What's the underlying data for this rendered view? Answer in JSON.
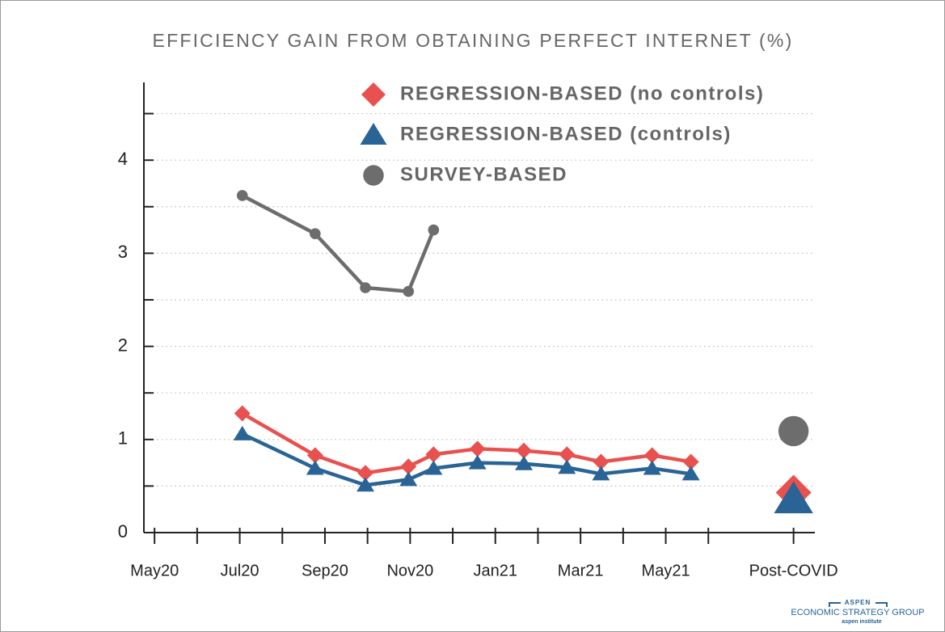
{
  "chart_data": {
    "type": "line",
    "title": "EFFICIENCY GAIN FROM OBTAINING PERFECT INTERNET (%)",
    "xlim": [
      -0.25,
      15.5
    ],
    "xticks": [
      {
        "value": 0,
        "label": "May20"
      },
      {
        "value": 2,
        "label": "Jul20"
      },
      {
        "value": 4,
        "label": "Sep20"
      },
      {
        "value": 6,
        "label": "Nov20"
      },
      {
        "value": 8,
        "label": "Jan21"
      },
      {
        "value": 10,
        "label": "Mar21"
      },
      {
        "value": 12,
        "label": "May21"
      },
      {
        "value": 15,
        "label": "Post-COVID"
      }
    ],
    "minor_xticks": [
      1,
      3,
      5,
      7,
      9,
      11,
      13
    ],
    "ylim": [
      0,
      4.8
    ],
    "yticks": [
      0,
      1,
      2,
      3,
      4
    ],
    "minor_yticks": [
      0.5,
      1.5,
      2.5,
      3.5,
      4.5
    ],
    "grid": true,
    "series": [
      {
        "name": "REGRESSION-BASED (no controls)",
        "color": "#e8514f",
        "marker": "diamond",
        "x": [
          2.06,
          3.77,
          4.95,
          5.96,
          6.55,
          7.58,
          8.67,
          9.68,
          10.48,
          11.68,
          12.59
        ],
        "values": [
          1.28,
          0.83,
          0.64,
          0.71,
          0.84,
          0.9,
          0.88,
          0.84,
          0.76,
          0.83,
          0.76
        ],
        "post_covid": 0.43
      },
      {
        "name": "REGRESSION-BASED (controls)",
        "color": "#2a6496",
        "marker": "triangle",
        "x": [
          2.06,
          3.77,
          4.95,
          5.96,
          6.55,
          7.58,
          8.67,
          9.68,
          10.48,
          11.68,
          12.59
        ],
        "values": [
          1.06,
          0.69,
          0.51,
          0.57,
          0.69,
          0.75,
          0.74,
          0.7,
          0.63,
          0.69,
          0.63
        ],
        "post_covid": 0.36
      },
      {
        "name": "SURVEY-BASED",
        "color": "#6d6d6d",
        "marker": "circle",
        "x": [
          2.06,
          3.77,
          4.95,
          5.96,
          6.55
        ],
        "values": [
          3.62,
          3.21,
          2.63,
          2.59,
          3.25
        ],
        "post_covid": 1.09
      }
    ]
  },
  "logo": {
    "top": "ASPEN",
    "main": "ECONOMIC STRATEGY GROUP",
    "sub": "aspen institute"
  }
}
